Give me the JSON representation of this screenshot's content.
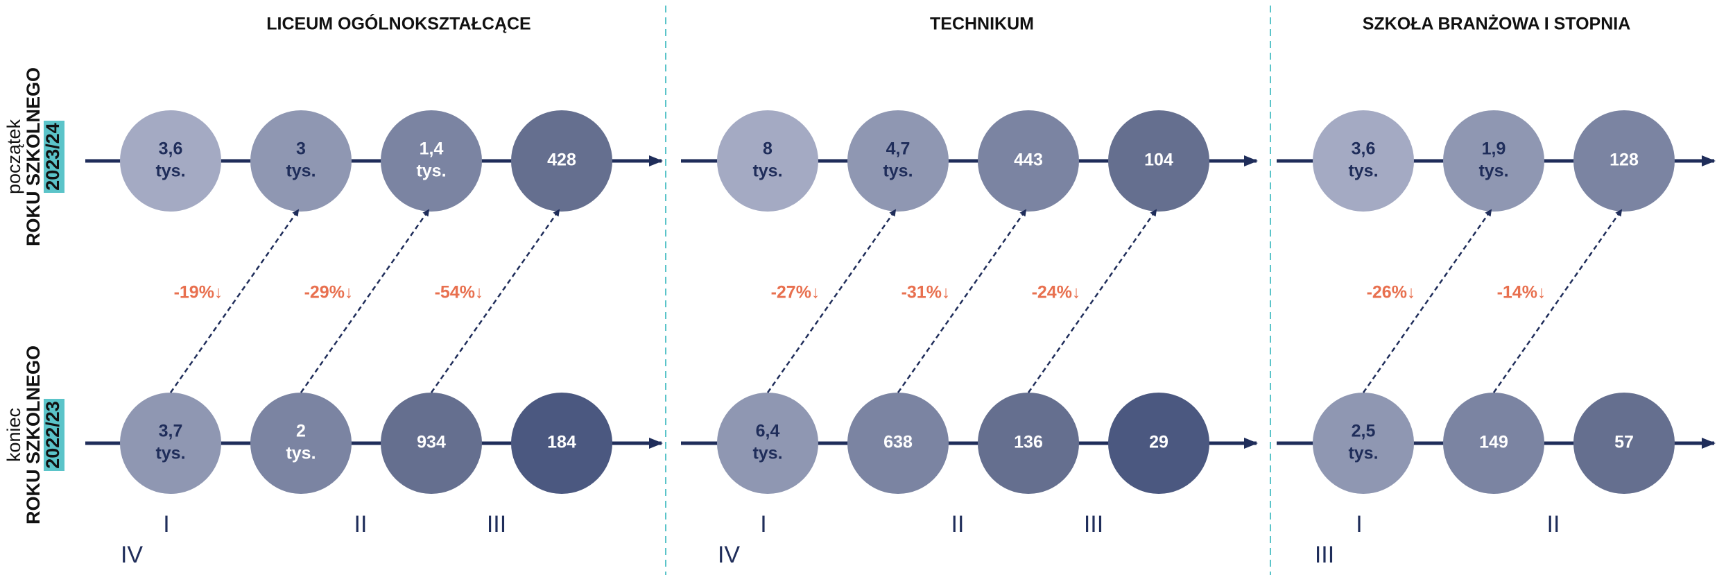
{
  "row_labels": [
    {
      "lines": [
        "początek",
        "ROKU SZKOLNEGO",
        "2023/24"
      ]
    },
    {
      "lines": [
        "koniec",
        "ROKU SZKOLNEGO",
        "2022/23"
      ]
    }
  ],
  "sections": [
    {
      "title": "LICEUM OGÓLNOKSZTAŁCĄCE",
      "top": [
        [
          "3,6",
          "tys."
        ],
        [
          "3",
          "tys."
        ],
        [
          "1,4",
          "tys."
        ],
        [
          "428"
        ]
      ],
      "bottom": [
        [
          "3,7",
          "tys."
        ],
        [
          "2",
          "tys."
        ],
        [
          "934"
        ],
        [
          "184"
        ]
      ],
      "changes": [
        "-19%↓",
        "-29%↓",
        "-54%↓"
      ],
      "grades": [
        "I",
        "II",
        "III",
        "IV"
      ]
    },
    {
      "title": "TECHNIKUM",
      "top": [
        [
          "8",
          "tys."
        ],
        [
          "4,7",
          "tys."
        ],
        [
          "443"
        ],
        [
          "104"
        ]
      ],
      "bottom": [
        [
          "6,4",
          "tys."
        ],
        [
          "638"
        ],
        [
          "136"
        ],
        [
          "29"
        ]
      ],
      "changes": [
        "-27%↓",
        "-31%↓",
        "-24%↓"
      ],
      "grades": [
        "I",
        "II",
        "III",
        "IV"
      ]
    },
    {
      "title": "SZKOŁA BRANŻOWA I STOPNIA",
      "top": [
        [
          "3,6",
          "tys."
        ],
        [
          "1,9",
          "tys."
        ],
        [
          "128"
        ]
      ],
      "bottom": [
        [
          "2,5",
          "tys."
        ],
        [
          "149"
        ],
        [
          "57"
        ]
      ],
      "changes": [
        "-26%↓",
        "-14%↓"
      ],
      "grades": [
        "I",
        "II",
        "III"
      ]
    }
  ]
}
